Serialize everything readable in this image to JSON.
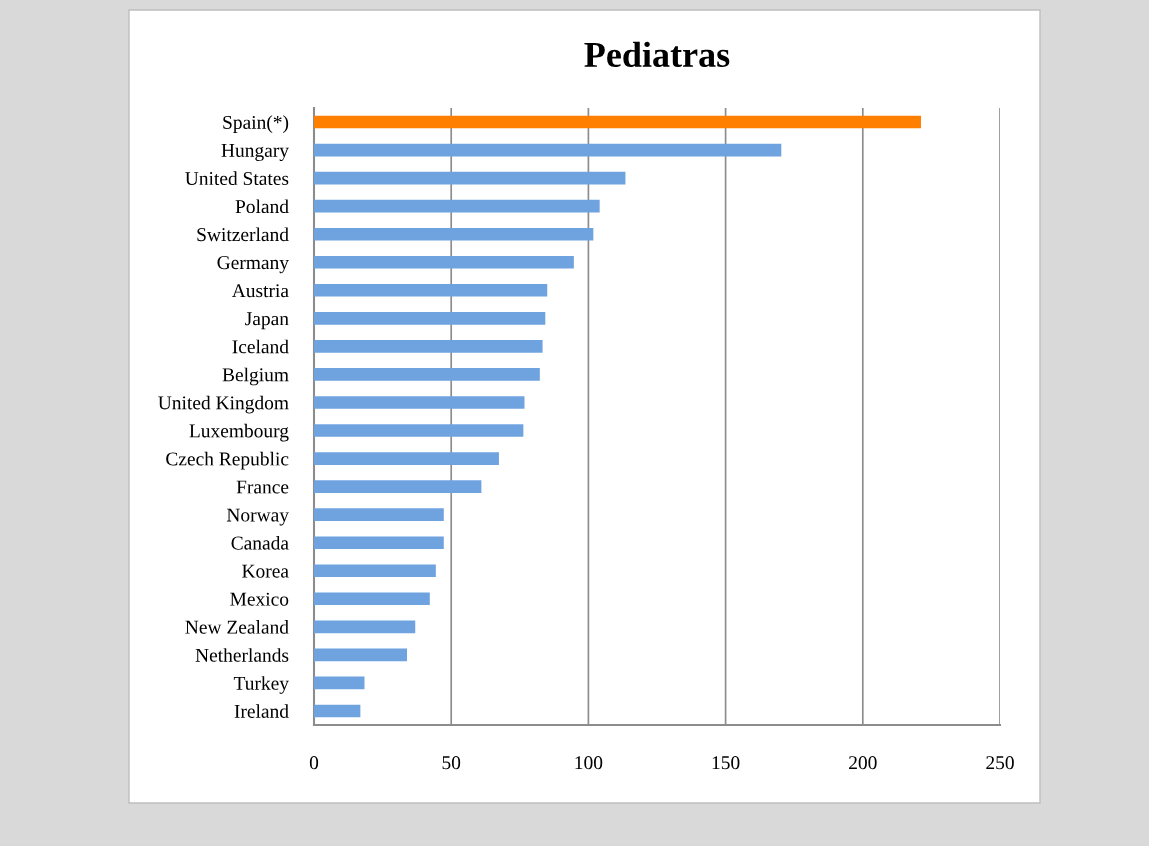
{
  "chart_data": {
    "type": "bar",
    "orientation": "horizontal",
    "title": "Pediatras",
    "categories": [
      "Spain(*)",
      "Hungary",
      "United States",
      "Poland",
      "Switzerland",
      "Germany",
      "Austria",
      "Japan",
      "Iceland",
      "Belgium",
      "United Kingdom",
      "Luxembourg",
      "Czech Republic",
      "France",
      "Norway",
      "Canada",
      "Korea",
      "Mexico",
      "New Zealand",
      "Netherlands",
      "Turkey",
      "Ireland"
    ],
    "values": [
      221.2,
      170.3,
      113.5,
      104.1,
      101.8,
      94.7,
      85,
      84.3,
      83.3,
      82.3,
      76.7,
      76.3,
      67.4,
      61,
      47.3,
      47.3,
      44.4,
      42.2,
      36.9,
      33.9,
      18.4,
      16.9
    ],
    "colors": [
      "#ff7f00",
      "#6fa3e0",
      "#6fa3e0",
      "#6fa3e0",
      "#6fa3e0",
      "#6fa3e0",
      "#6fa3e0",
      "#6fa3e0",
      "#6fa3e0",
      "#6fa3e0",
      "#6fa3e0",
      "#6fa3e0",
      "#6fa3e0",
      "#6fa3e0",
      "#6fa3e0",
      "#6fa3e0",
      "#6fa3e0",
      "#6fa3e0",
      "#6fa3e0",
      "#6fa3e0",
      "#6fa3e0",
      "#6fa3e0"
    ],
    "xlim": [
      0,
      250
    ],
    "xticks": [
      0,
      50,
      100,
      150,
      200,
      250
    ],
    "grid": "x",
    "legend": false
  }
}
